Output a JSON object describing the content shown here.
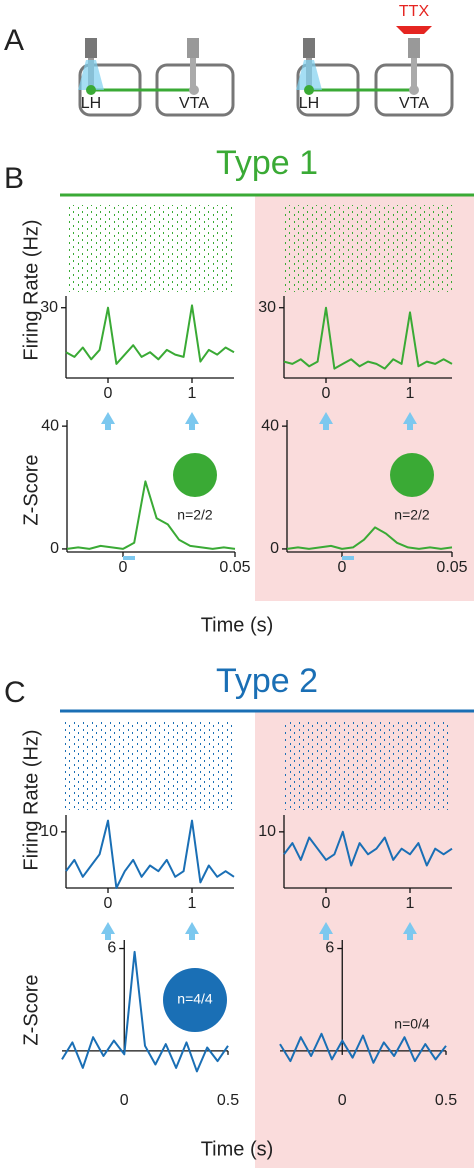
{
  "figure": {
    "panel_labels": [
      "A",
      "B",
      "C"
    ],
    "diagram": {
      "left": {
        "labels": [
          "LH",
          "VTA"
        ]
      },
      "right": {
        "labels": [
          "LH",
          "VTA"
        ],
        "drug": "TTX"
      }
    },
    "sections": [
      {
        "title": "Type 1",
        "color": "#3aaa35",
        "firing_y_label": "Firing Rate (Hz)",
        "z_y_label": "Z-Score",
        "x_label": "Time (s)"
      },
      {
        "title": "Type 2",
        "color": "#1a6fb5",
        "firing_y_label": "Firing Rate (Hz)",
        "z_y_label": "Z-Score",
        "x_label": "Time (s)"
      }
    ]
  },
  "chart_data": [
    {
      "type": "line",
      "color": "#3aaa35",
      "x": [
        -0.5,
        -0.4,
        -0.3,
        -0.2,
        -0.1,
        0,
        0.1,
        0.2,
        0.3,
        0.4,
        0.5,
        0.6,
        0.7,
        0.8,
        0.9,
        1,
        1.1,
        1.2,
        1.3,
        1.4,
        1.5
      ],
      "values": [
        11,
        9,
        13,
        8,
        12,
        30,
        6,
        10,
        14,
        9,
        11,
        8,
        12,
        10,
        9,
        31,
        7,
        12,
        10,
        13,
        11
      ],
      "xlim": [
        -0.5,
        1.5
      ],
      "ylim": [
        0,
        35
      ],
      "xticks": [
        0,
        1
      ],
      "yticks": [
        30
      ]
    },
    {
      "type": "line",
      "color": "#3aaa35",
      "x": [
        -0.5,
        -0.4,
        -0.3,
        -0.2,
        -0.1,
        0,
        0.1,
        0.2,
        0.3,
        0.4,
        0.5,
        0.6,
        0.7,
        0.8,
        0.9,
        1,
        1.1,
        1.2,
        1.3,
        1.4,
        1.5
      ],
      "values": [
        7,
        6,
        8,
        5,
        7,
        30,
        4,
        6,
        8,
        5,
        7,
        6,
        4,
        8,
        6,
        28,
        5,
        7,
        6,
        8,
        6
      ],
      "xlim": [
        -0.5,
        1.5
      ],
      "ylim": [
        0,
        35
      ],
      "xticks": [
        0,
        1
      ],
      "yticks": [
        30
      ]
    },
    {
      "type": "line",
      "color": "#3aaa35",
      "x": [
        -0.025,
        -0.02,
        -0.015,
        -0.01,
        -0.005,
        0,
        0.005,
        0.01,
        0.015,
        0.02,
        0.025,
        0.03,
        0.035,
        0.04,
        0.045,
        0.05
      ],
      "values": [
        0,
        0.5,
        0,
        1,
        0.5,
        0,
        2,
        22,
        10,
        8,
        3,
        1,
        0.5,
        0,
        0.5,
        0
      ],
      "xlim": [
        -0.025,
        0.05
      ],
      "ylim": [
        -1,
        42
      ],
      "xticks": [
        0,
        0.05
      ],
      "yticks": [
        0,
        40
      ],
      "annotation": "n=2/2"
    },
    {
      "type": "line",
      "color": "#3aaa35",
      "x": [
        -0.025,
        -0.02,
        -0.015,
        -0.01,
        -0.005,
        0,
        0.005,
        0.01,
        0.015,
        0.02,
        0.025,
        0.03,
        0.035,
        0.04,
        0.045,
        0.05
      ],
      "values": [
        0,
        0.5,
        0,
        0.5,
        1,
        0,
        0.5,
        3,
        7,
        5,
        2,
        0.5,
        0,
        0.5,
        0,
        0.5
      ],
      "xlim": [
        -0.025,
        0.05
      ],
      "ylim": [
        -1,
        42
      ],
      "xticks": [
        0,
        0.05
      ],
      "yticks": [
        0,
        40
      ],
      "annotation": "n=2/2"
    },
    {
      "type": "line",
      "color": "#1a6fb5",
      "x": [
        -0.5,
        -0.4,
        -0.3,
        -0.2,
        -0.1,
        0,
        0.1,
        0.2,
        0.3,
        0.4,
        0.5,
        0.6,
        0.7,
        0.8,
        0.9,
        1,
        1.1,
        1.2,
        1.3,
        1.4,
        1.5
      ],
      "values": [
        3,
        5,
        2,
        4,
        6,
        12,
        0,
        3,
        5,
        2,
        4,
        3,
        5,
        2,
        3,
        12,
        1,
        4,
        2,
        3,
        2
      ],
      "xlim": [
        -0.5,
        1.5
      ],
      "ylim": [
        0,
        13
      ],
      "xticks": [
        0,
        1
      ],
      "yticks": [
        10
      ]
    },
    {
      "type": "line",
      "color": "#1a6fb5",
      "x": [
        -0.5,
        -0.4,
        -0.3,
        -0.2,
        -0.1,
        0,
        0.1,
        0.2,
        0.3,
        0.4,
        0.5,
        0.6,
        0.7,
        0.8,
        0.9,
        1,
        1.1,
        1.2,
        1.3,
        1.4,
        1.5
      ],
      "values": [
        6,
        8,
        5,
        9,
        7,
        5,
        6,
        10,
        4,
        8,
        6,
        7,
        9,
        5,
        7,
        6,
        8,
        4,
        7,
        6,
        7
      ],
      "xlim": [
        -0.5,
        1.5
      ],
      "ylim": [
        0,
        13
      ],
      "xticks": [
        0,
        1
      ],
      "yticks": [
        10
      ]
    },
    {
      "type": "line",
      "color": "#1a6fb5",
      "x": [
        -0.3,
        -0.25,
        -0.2,
        -0.15,
        -0.1,
        -0.05,
        0,
        0.05,
        0.1,
        0.15,
        0.2,
        0.25,
        0.3,
        0.35,
        0.4,
        0.45,
        0.5
      ],
      "values": [
        -0.5,
        0.5,
        -1,
        0.8,
        -0.3,
        0.6,
        -0.2,
        5.8,
        0.3,
        -0.8,
        0.4,
        -1,
        0.5,
        -1.2,
        0.2,
        -0.6,
        0.3
      ],
      "xlim": [
        -0.3,
        0.5
      ],
      "ylim": [
        -2,
        6.5
      ],
      "xticks": [
        0,
        0.5
      ],
      "yticks": [
        6
      ],
      "annotation": "n=4/4"
    },
    {
      "type": "line",
      "color": "#1a6fb5",
      "x": [
        -0.3,
        -0.25,
        -0.2,
        -0.15,
        -0.1,
        -0.05,
        0,
        0.05,
        0.1,
        0.15,
        0.2,
        0.25,
        0.3,
        0.35,
        0.4,
        0.45,
        0.5
      ],
      "values": [
        0.4,
        -0.6,
        0.8,
        -0.3,
        1,
        -0.5,
        0.6,
        -0.4,
        0.9,
        -0.7,
        0.5,
        -0.3,
        0.8,
        -0.6,
        0.4,
        -0.5,
        0.3
      ],
      "xlim": [
        -0.3,
        0.5
      ],
      "ylim": [
        -2,
        6.5
      ],
      "xticks": [
        0,
        0.5
      ],
      "yticks": [
        6
      ],
      "annotation": "n=0/4"
    }
  ]
}
